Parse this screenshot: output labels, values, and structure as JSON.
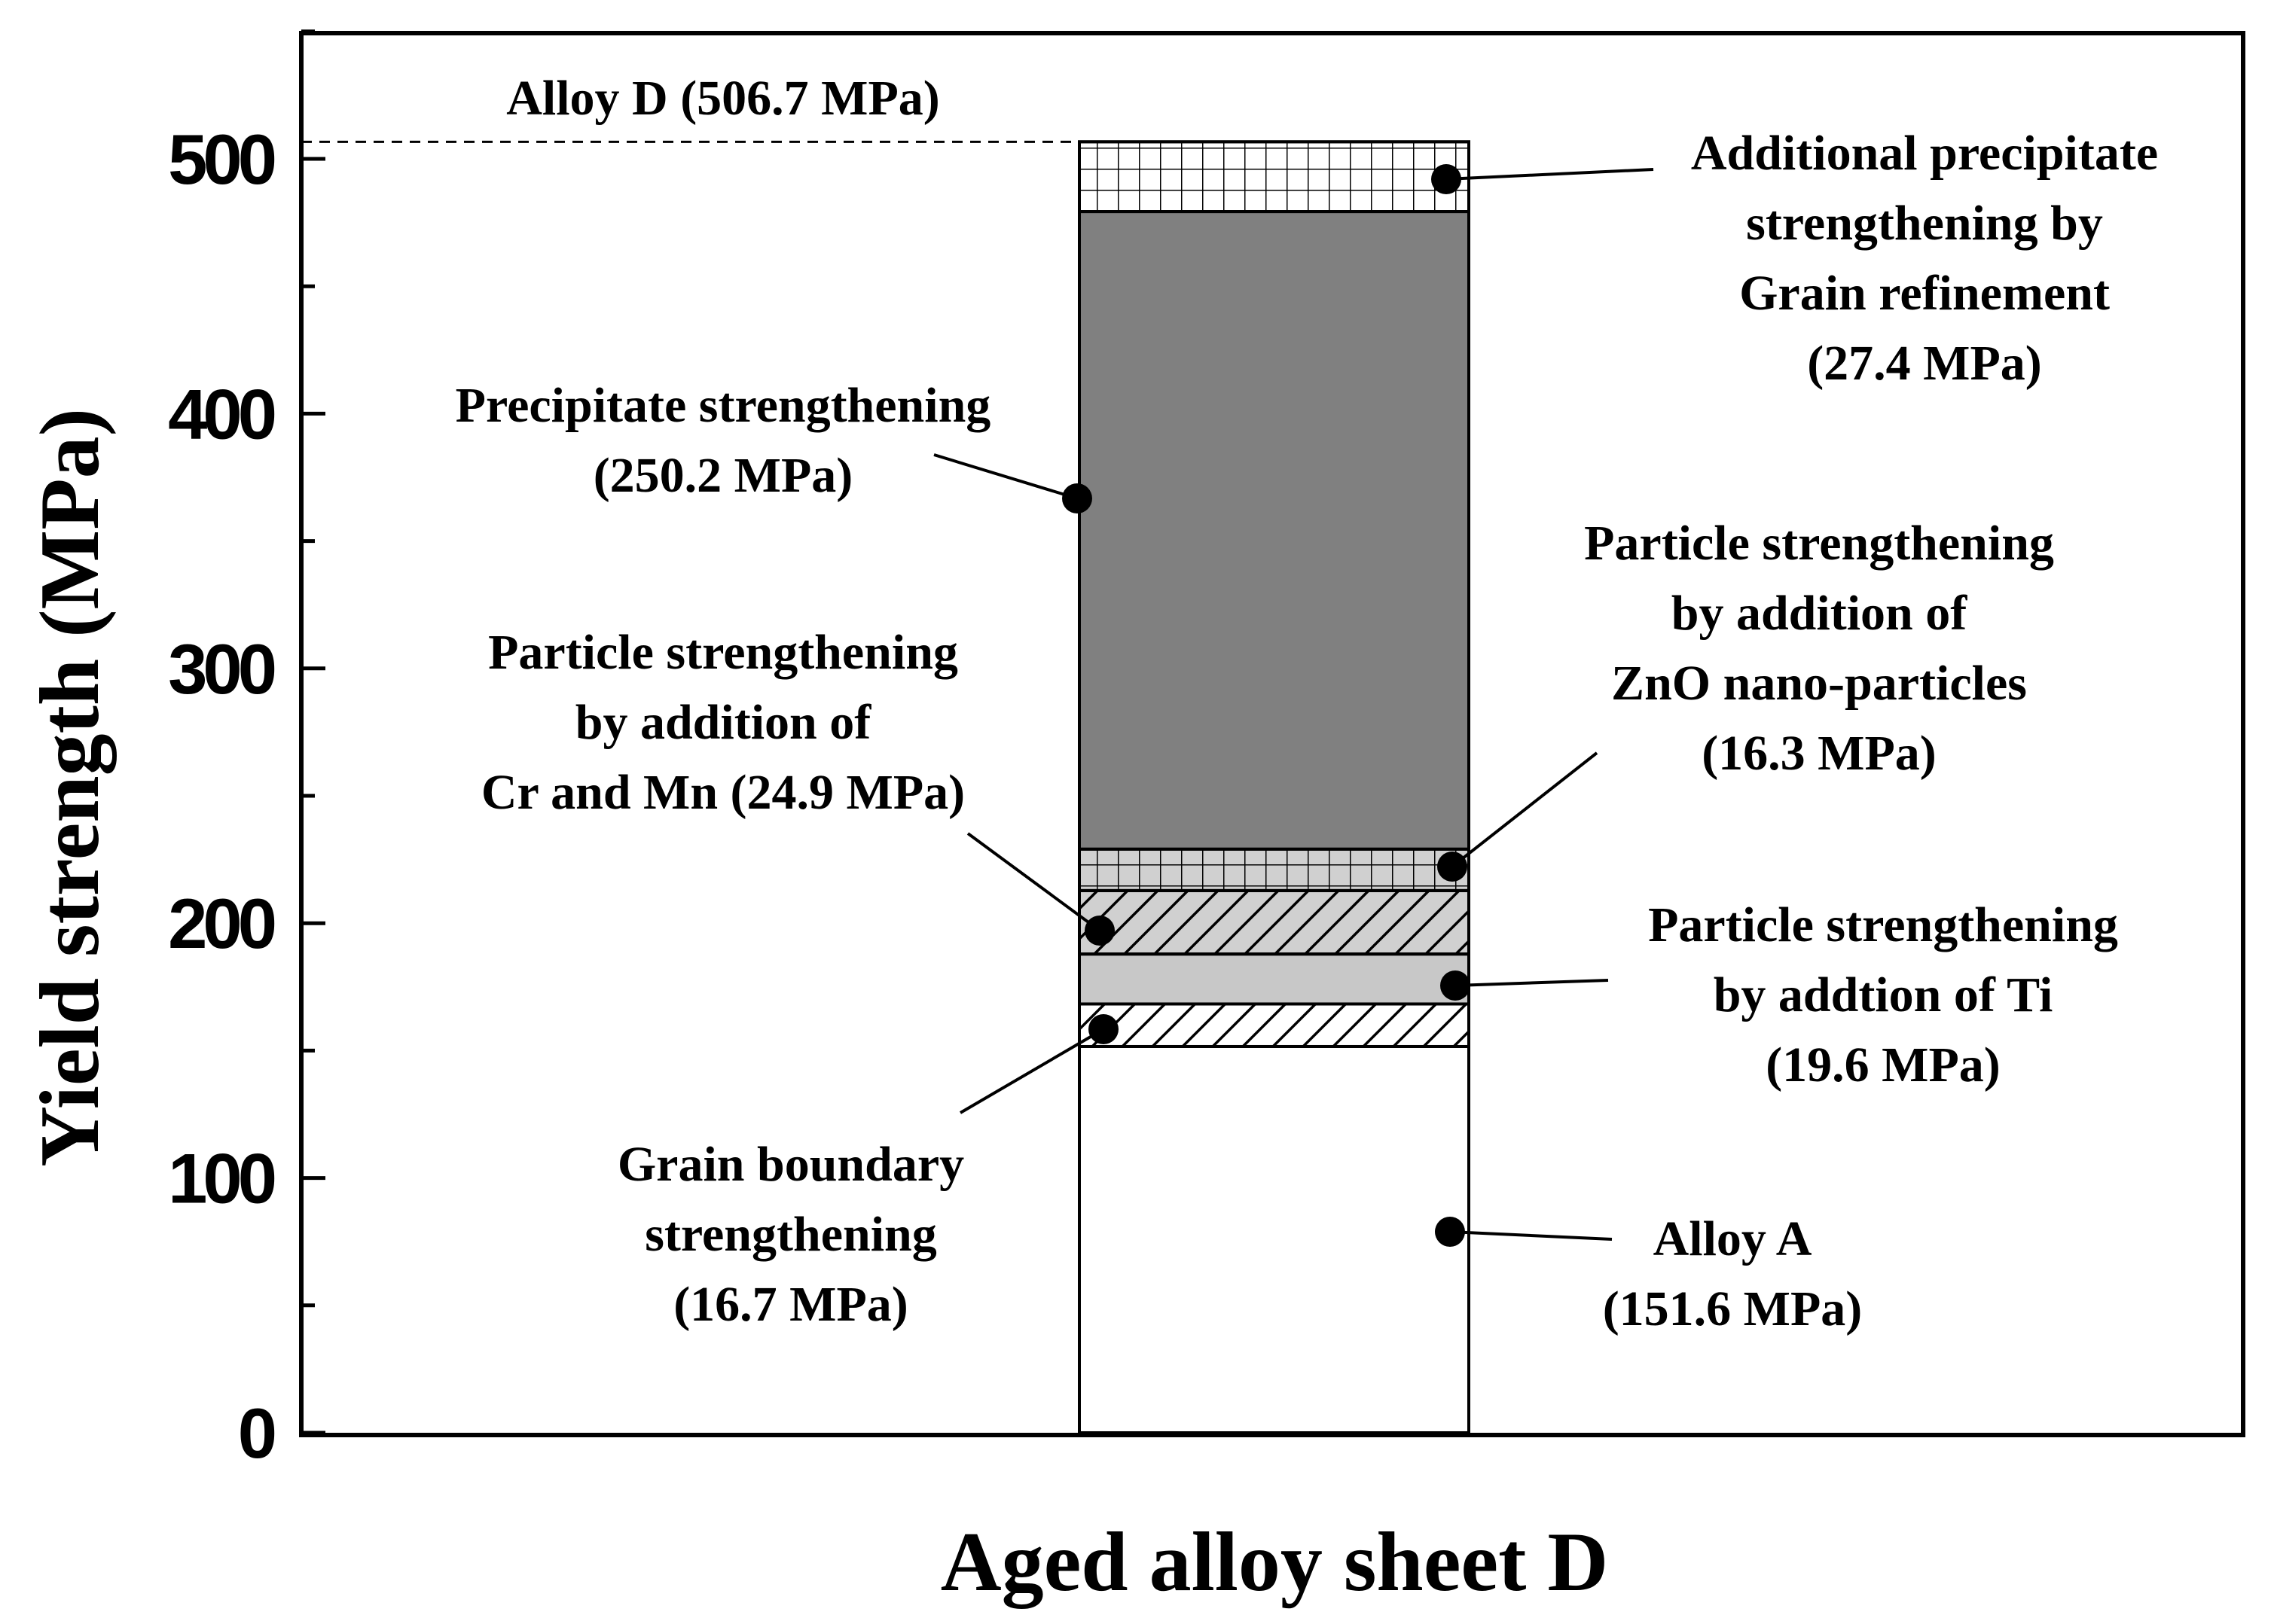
{
  "chart_data": {
    "type": "bar",
    "stacked": true,
    "xlabel": "Aged alloy sheet D",
    "ylabel": "Yield strength (MPa)",
    "ylim": [
      0,
      550
    ],
    "yticks": [
      0,
      100,
      200,
      300,
      400,
      500
    ],
    "grid": false,
    "total": {
      "name": "Alloy D",
      "value": 506.7,
      "label": "Alloy D (506.7 MPa)"
    },
    "series": [
      {
        "key": "base",
        "name": "Alloy A",
        "value": 151.6,
        "fill": "#ffffff",
        "pattern": "none",
        "label_lines": [
          "Alloy A",
          "(151.6 MPa)"
        ]
      },
      {
        "key": "gb",
        "name": "Grain boundary strengthening",
        "value": 16.7,
        "fill": "#ffffff",
        "pattern": "diagonal",
        "label_lines": [
          "Grain boundary",
          "strengthening",
          "(16.7 MPa)"
        ]
      },
      {
        "key": "ti",
        "name": "Particle strengthening by addtion of Ti",
        "value": 19.6,
        "fill": "#c8c8c8",
        "pattern": "none",
        "label_lines": [
          "Particle strengthening",
          "by addtion of Ti",
          "(19.6 MPa)"
        ]
      },
      {
        "key": "crmn",
        "name": "Particle strengthening by addition of Cr and Mn",
        "value": 24.9,
        "fill": "#d0d0d0",
        "pattern": "diagonal",
        "label_lines": [
          "Particle strengthening",
          "by addition of",
          "Cr and Mn (24.9 MPa)"
        ]
      },
      {
        "key": "zno",
        "name": "Particle strengthening by addition of ZnO nano-particles",
        "value": 16.3,
        "fill": "#d0d0d0",
        "pattern": "grid",
        "label_lines": [
          "Particle strengthening",
          "by addition of",
          "ZnO nano-particles",
          "(16.3 MPa)"
        ]
      },
      {
        "key": "ppt",
        "name": "Precipitate strengthening",
        "value": 250.2,
        "fill": "#808080",
        "pattern": "none",
        "label_lines": [
          "Precipitate strengthening",
          "(250.2 MPa)"
        ]
      },
      {
        "key": "addppt",
        "name": "Additional precipitate strengthening by Grain refinement",
        "value": 27.4,
        "fill": "#ffffff",
        "pattern": "grid",
        "label_lines": [
          "Additional precipitate",
          "strengthening by",
          "Grain refinement",
          "(27.4 MPa)"
        ]
      }
    ]
  }
}
